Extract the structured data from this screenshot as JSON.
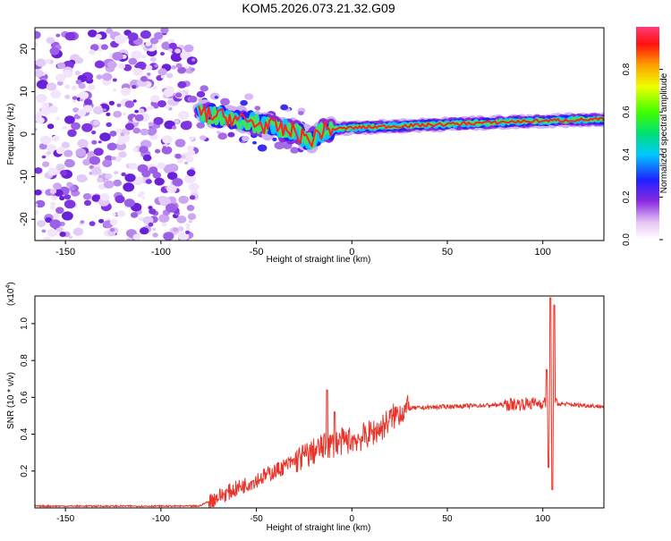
{
  "title": "KOM5.2026.073.21.32.G09",
  "colors": {
    "snr_line": "#e8342a",
    "frame": "#000000",
    "background": "#ffffff"
  },
  "chart_data": [
    {
      "type": "heatmap",
      "name": "spectrogram",
      "xlabel": "Height of straight line (km)",
      "ylabel": "Frequency (Hz)",
      "xlim": [
        -166,
        132
      ],
      "ylim": [
        -25,
        25
      ],
      "xticks": [
        -150,
        -100,
        -50,
        0,
        50,
        100
      ],
      "yticks": [
        -20,
        -10,
        0,
        10,
        20
      ],
      "xtick_labels": [
        "-150",
        "-100",
        "-50",
        "0",
        "50",
        "100"
      ],
      "ytick_labels": [
        "-20",
        "-10",
        "0",
        "10",
        "20"
      ],
      "colorbar": {
        "label": "Normalized spectral amplitude",
        "range": [
          0,
          1
        ],
        "ticks": [
          0.0,
          0.2,
          0.4,
          0.6,
          0.8
        ],
        "tick_labels": [
          "0.0",
          "0.2",
          "0.4",
          "0.6",
          "0.8"
        ]
      },
      "ridge": [
        {
          "x": -80,
          "f": 5
        },
        {
          "x": -60,
          "f": 3.5
        },
        {
          "x": -45,
          "f": 2
        },
        {
          "x": -30,
          "f": 0.5
        },
        {
          "x": -22,
          "f": -1.5
        },
        {
          "x": -15,
          "f": 1
        },
        {
          "x": 0,
          "f": 1.5
        },
        {
          "x": 30,
          "f": 2
        },
        {
          "x": 60,
          "f": 2.5
        },
        {
          "x": 90,
          "f": 3
        },
        {
          "x": 132,
          "f": 3.5
        }
      ],
      "noise_region": {
        "x_start": -166,
        "x_end": -82
      }
    },
    {
      "type": "line",
      "name": "snr",
      "xlabel": "Height of straight line (km)",
      "ylabel": "SNR (10 * v/v)",
      "multiplier_label": "(x10",
      "multiplier_exp": "4",
      "multiplier_close": ")",
      "xlim": [
        -166,
        132
      ],
      "ylim": [
        0,
        1.15
      ],
      "xticks": [
        -150,
        -100,
        -50,
        0,
        50,
        100
      ],
      "yticks": [
        0.2,
        0.4,
        0.6,
        0.8,
        1.0
      ],
      "xtick_labels": [
        "-150",
        "-100",
        "-50",
        "0",
        "50",
        "100"
      ],
      "ytick_labels": [
        "0.2",
        "0.4",
        "0.6",
        "0.8",
        "1.0"
      ],
      "trend": [
        {
          "x": -166,
          "y": 0.01
        },
        {
          "x": -80,
          "y": 0.01
        },
        {
          "x": -70,
          "y": 0.06
        },
        {
          "x": -55,
          "y": 0.13
        },
        {
          "x": -40,
          "y": 0.2
        },
        {
          "x": -25,
          "y": 0.28
        },
        {
          "x": -15,
          "y": 0.33
        },
        {
          "x": -5,
          "y": 0.36
        },
        {
          "x": 5,
          "y": 0.38
        },
        {
          "x": 15,
          "y": 0.43
        },
        {
          "x": 20,
          "y": 0.48
        },
        {
          "x": 25,
          "y": 0.52
        },
        {
          "x": 30,
          "y": 0.54
        },
        {
          "x": 50,
          "y": 0.55
        },
        {
          "x": 80,
          "y": 0.56
        },
        {
          "x": 100,
          "y": 0.57
        },
        {
          "x": 132,
          "y": 0.55
        }
      ],
      "peaks": [
        {
          "x": -13,
          "y": 0.64
        },
        {
          "x": -9,
          "y": 0.52
        },
        {
          "x": 104,
          "y": 1.14
        },
        {
          "x": 106,
          "y": 1.1
        },
        {
          "x": 102,
          "y": 0.75
        }
      ],
      "dips": [
        {
          "x": 105,
          "y": 0.1
        },
        {
          "x": 103,
          "y": 0.22
        }
      ]
    }
  ]
}
